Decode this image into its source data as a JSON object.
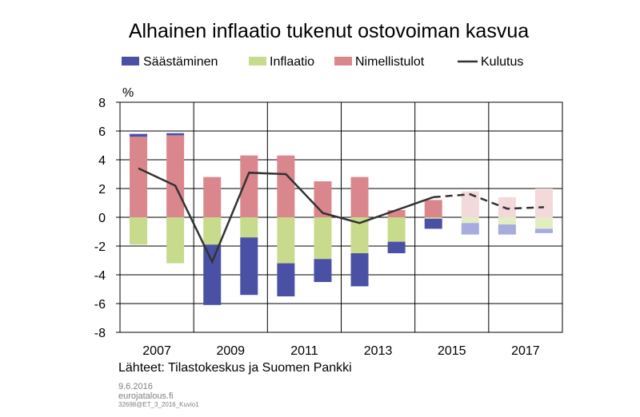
{
  "title": "Alhainen inflaatio tukenut ostovoiman kasvua",
  "unit": "%",
  "source": "Lähteet: Tilastokeskus ja Suomen Pankki",
  "footer": {
    "date": "9.6.2016",
    "site": "eurojatalous.fi",
    "code": "32698@ET_3_2016_Kuvio1"
  },
  "colors": {
    "saastaminen": "#4a51a5",
    "inflaatio": "#c8da8c",
    "nimellistulot": "#d9878d",
    "saastaminen_forecast": "#a7abde",
    "inflaatio_forecast": "#e3edc3",
    "nimellistulot_forecast": "#f4d9db",
    "kulutus": "#333333"
  },
  "chart_data": {
    "type": "bar",
    "stacked": true,
    "categories": [
      "2007",
      "2008",
      "2009",
      "2010",
      "2011",
      "2012",
      "2013",
      "2014",
      "2015",
      "2016",
      "2017",
      "2018"
    ],
    "x_tick_labels": [
      "2007",
      "2009",
      "2011",
      "2013",
      "2015",
      "2017"
    ],
    "forecast_from": "2016",
    "ylim": [
      -8,
      8
    ],
    "yticks": [
      -8,
      -6,
      -4,
      -2,
      0,
      2,
      4,
      6,
      8
    ],
    "grid": true,
    "legend_position": "top",
    "series": [
      {
        "name": "Säästäminen",
        "type": "bar",
        "values": [
          0.2,
          0.15,
          -4.2,
          -4.0,
          -2.3,
          -1.6,
          -2.3,
          -0.8,
          -0.7,
          -0.8,
          -0.7,
          -0.3
        ]
      },
      {
        "name": "Inflaatio",
        "type": "bar",
        "values": [
          -1.9,
          -3.2,
          -1.9,
          -1.4,
          -3.2,
          -2.9,
          -2.5,
          -1.7,
          -0.1,
          -0.4,
          -0.5,
          -0.8
        ]
      },
      {
        "name": "Nimellistulot",
        "type": "bar",
        "values": [
          5.6,
          5.7,
          2.8,
          4.3,
          4.3,
          2.5,
          2.8,
          0.5,
          1.2,
          1.8,
          1.4,
          2.0
        ]
      },
      {
        "name": "Kulutus",
        "type": "line",
        "values": [
          3.4,
          2.2,
          -3.1,
          3.1,
          3.0,
          0.3,
          -0.4,
          0.5,
          1.4,
          1.6,
          0.6,
          0.7
        ]
      }
    ]
  }
}
